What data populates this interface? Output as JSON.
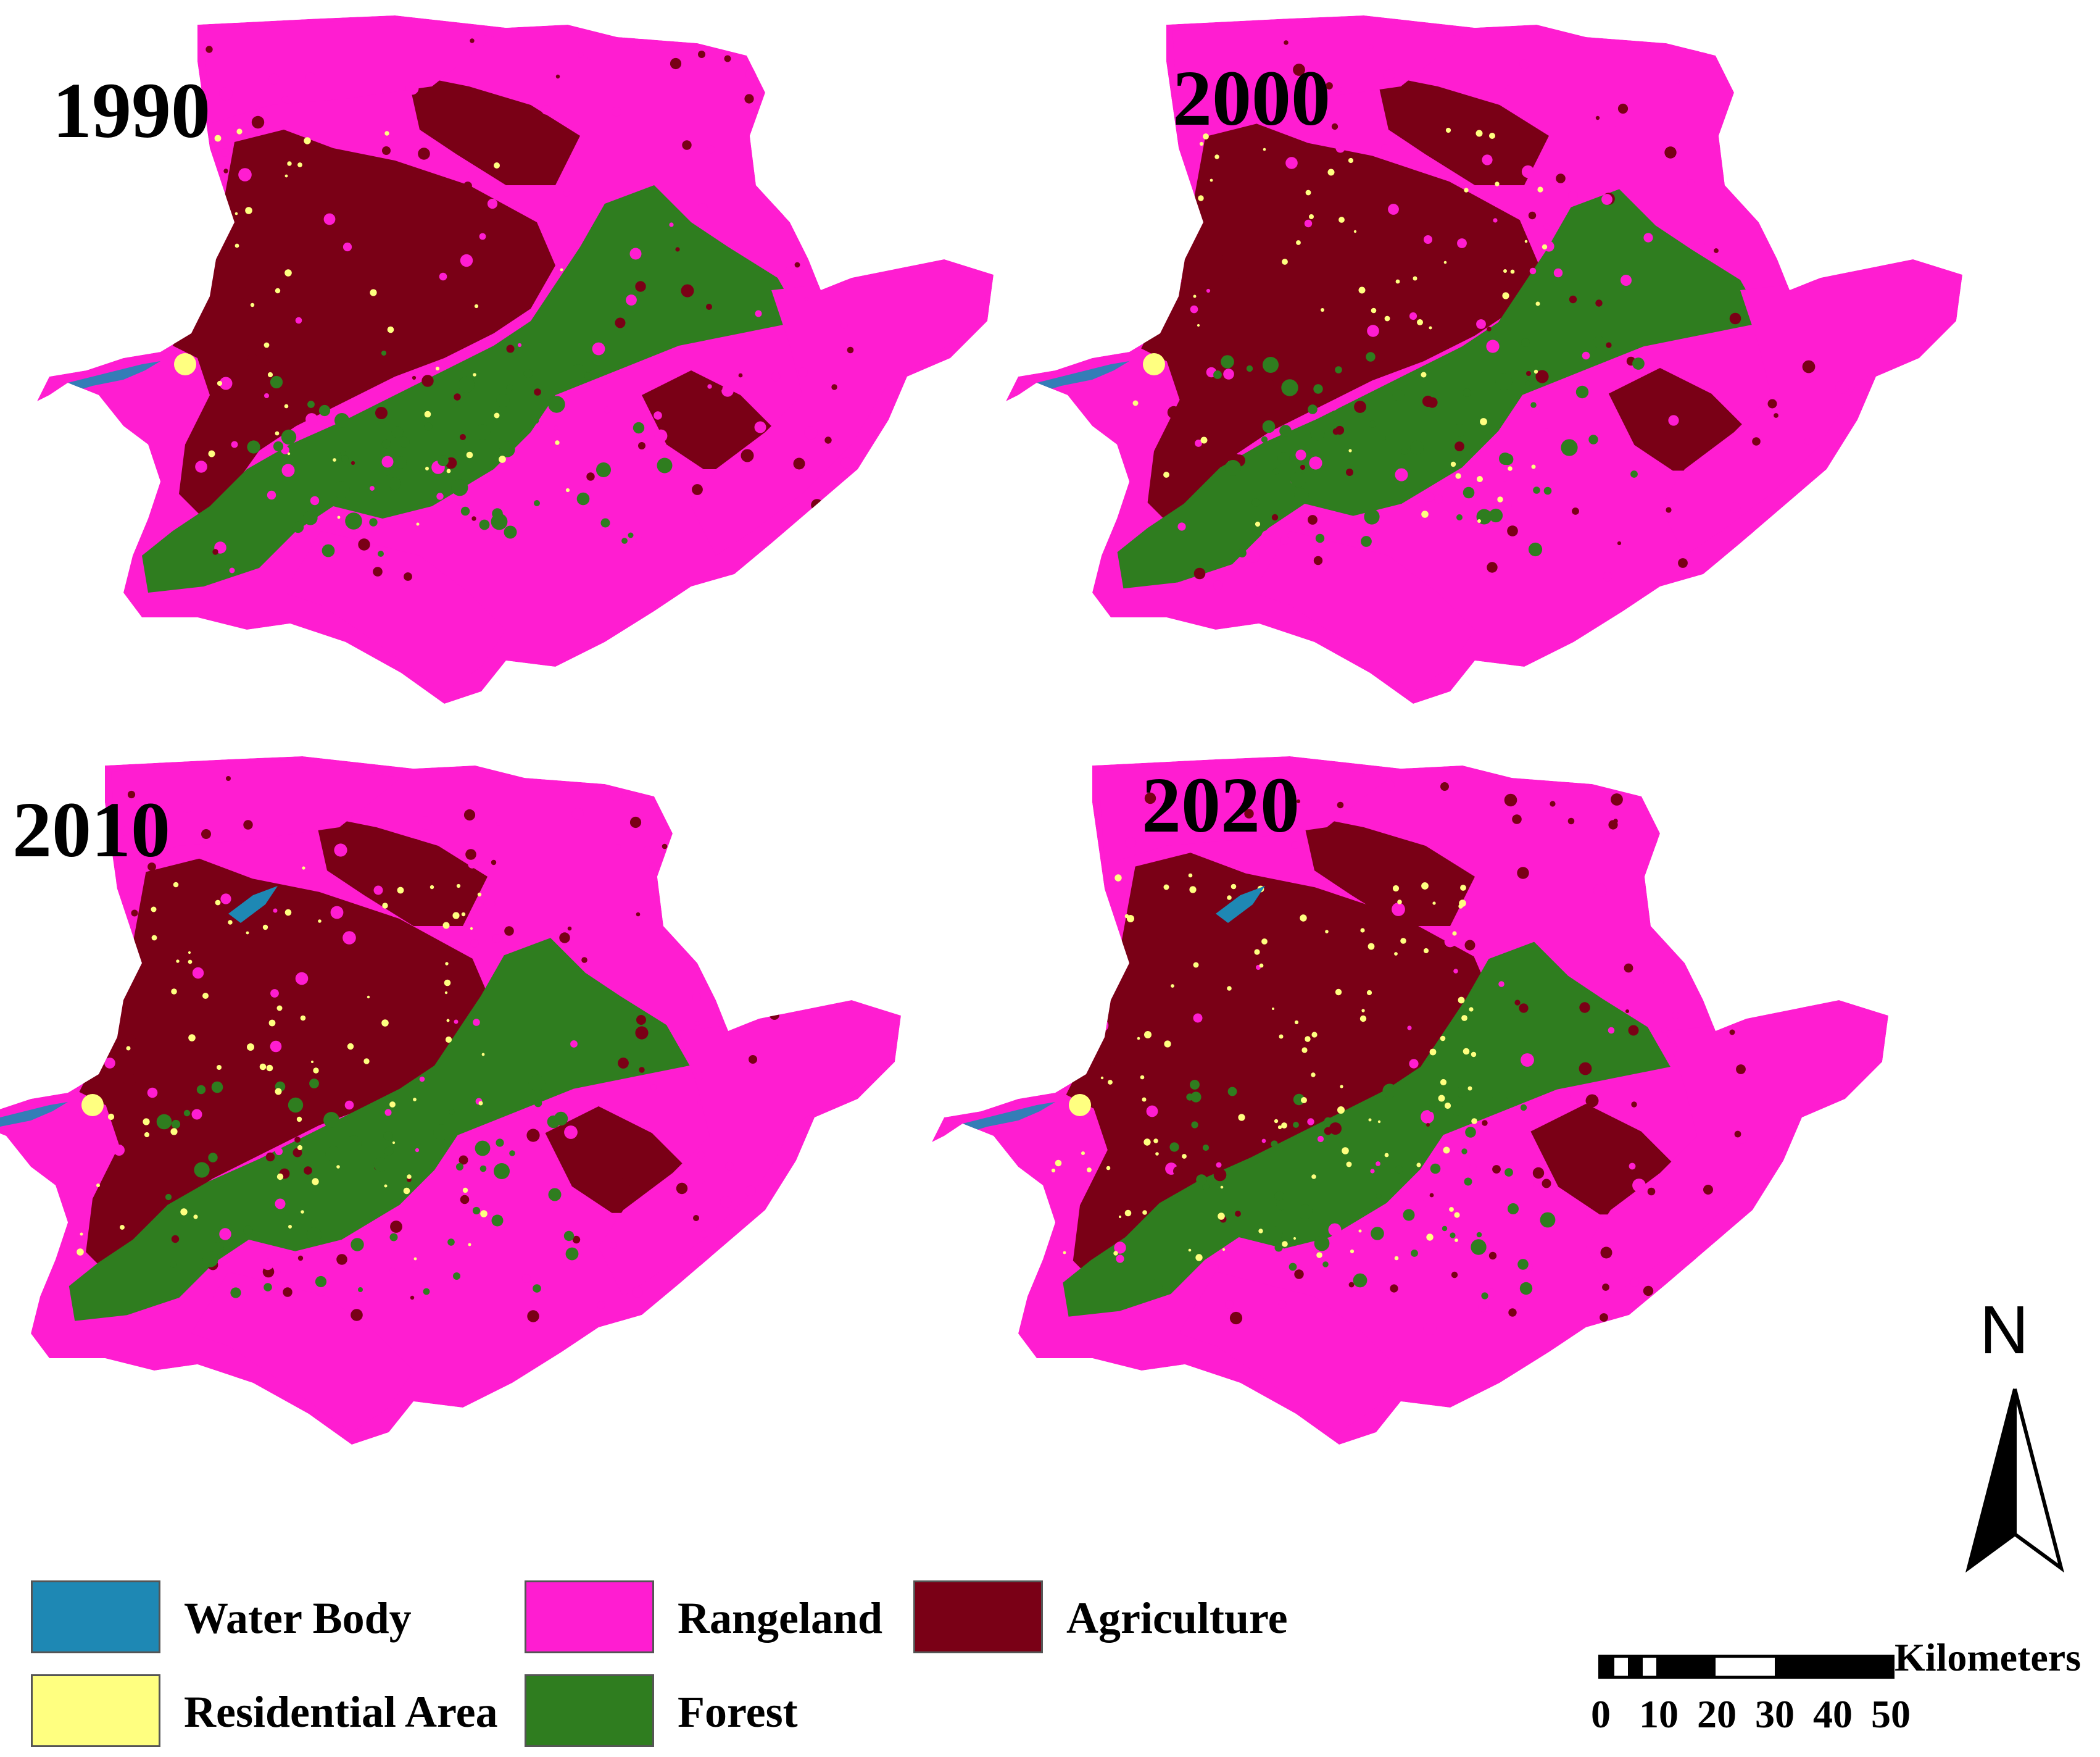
{
  "maps": [
    {
      "year": "1990",
      "key": "m1990"
    },
    {
      "year": "2000",
      "key": "m2000"
    },
    {
      "year": "2010",
      "key": "m2010"
    },
    {
      "year": "2020",
      "key": "m2020"
    }
  ],
  "legend": {
    "water_body": "Water Body",
    "residential_area": "Residential Area",
    "rangeland": "Rangeland",
    "forest": "Forest",
    "agriculture": "Agriculture"
  },
  "colors": {
    "water_body": "#1e88b4",
    "residential_area": "#ffff80",
    "rangeland": "#ff1dd1",
    "forest": "#2f7d1f",
    "agriculture": "#7a0016"
  },
  "north_arrow": {
    "letter": "N"
  },
  "scale_bar": {
    "unit": "Kilometers",
    "ticks": [
      "0",
      "10",
      "20",
      "30",
      "40",
      "50"
    ]
  }
}
